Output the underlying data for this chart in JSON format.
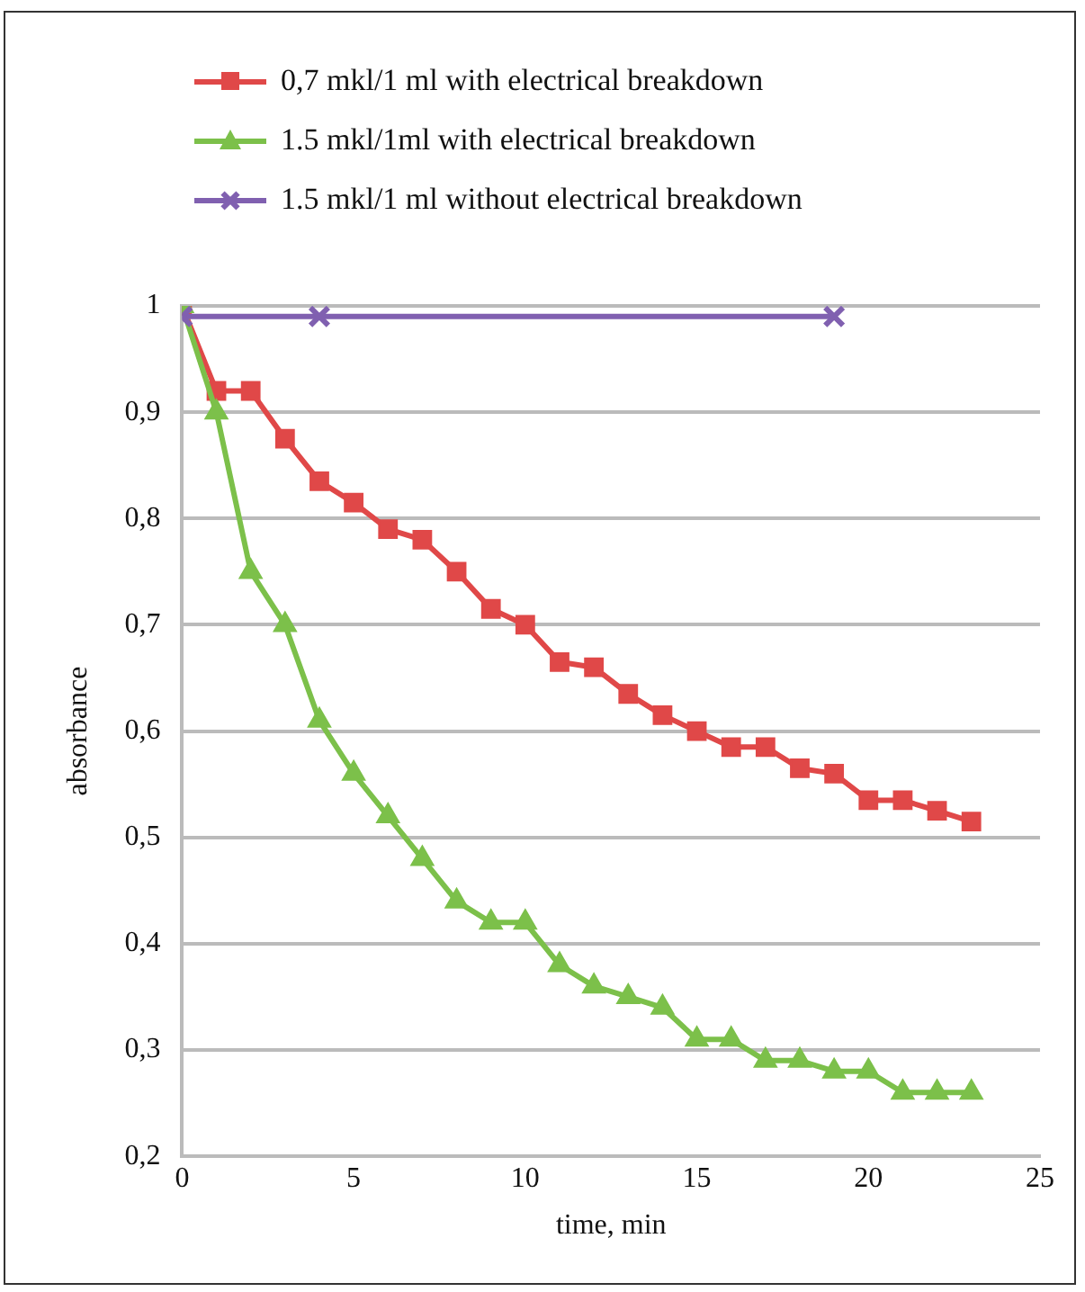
{
  "chart_data": {
    "type": "line",
    "xlabel": "time, min",
    "ylabel": "absorbance",
    "xlim": [
      0,
      25
    ],
    "xticks": [
      0,
      5,
      10,
      15,
      20,
      25
    ],
    "ylim": [
      0.2,
      1
    ],
    "yticks": [
      {
        "value": 0.2,
        "label": "0,2"
      },
      {
        "value": 0.3,
        "label": "0,3"
      },
      {
        "value": 0.4,
        "label": "0,4"
      },
      {
        "value": 0.5,
        "label": "0,5"
      },
      {
        "value": 0.6,
        "label": "0,6"
      },
      {
        "value": 0.7,
        "label": "0,7"
      },
      {
        "value": 0.8,
        "label": "0,8"
      },
      {
        "value": 0.9,
        "label": "0,9"
      },
      1
    ],
    "grid": "y",
    "legend": "top",
    "series": [
      {
        "name": "0,7 mkl/1 ml with electrical breakdown",
        "color": "#e04848",
        "marker": "square",
        "x": [
          0,
          1,
          2,
          3,
          4,
          5,
          6,
          7,
          8,
          9,
          10,
          11,
          12,
          13,
          14,
          15,
          16,
          17,
          18,
          19,
          20,
          21,
          22,
          23
        ],
        "values": [
          1,
          0.92,
          0.92,
          0.875,
          0.835,
          0.815,
          0.79,
          0.78,
          0.75,
          0.715,
          0.7,
          0.665,
          0.66,
          0.635,
          0.615,
          0.6,
          0.585,
          0.585,
          0.565,
          0.56,
          0.535,
          0.535,
          0.525,
          0.515
        ]
      },
      {
        "name": "1.5 mkl/1ml with electrical breakdown",
        "color": "#7cc04a",
        "marker": "triangle",
        "x": [
          0,
          1,
          2,
          3,
          4,
          5,
          6,
          7,
          8,
          9,
          10,
          11,
          12,
          13,
          14,
          15,
          16,
          17,
          18,
          19,
          20,
          21,
          22,
          23
        ],
        "values": [
          1,
          0.9,
          0.75,
          0.7,
          0.61,
          0.56,
          0.52,
          0.48,
          0.44,
          0.42,
          0.42,
          0.38,
          0.36,
          0.35,
          0.34,
          0.31,
          0.31,
          0.29,
          0.29,
          0.28,
          0.28,
          0.26,
          0.26,
          0.26
        ]
      },
      {
        "name": "1.5 mkl/1 ml without electrical breakdown",
        "color": "#8060b0",
        "marker": "cross",
        "x": [
          0,
          4,
          19
        ],
        "values": [
          0.99,
          0.99,
          0.99
        ]
      }
    ]
  }
}
